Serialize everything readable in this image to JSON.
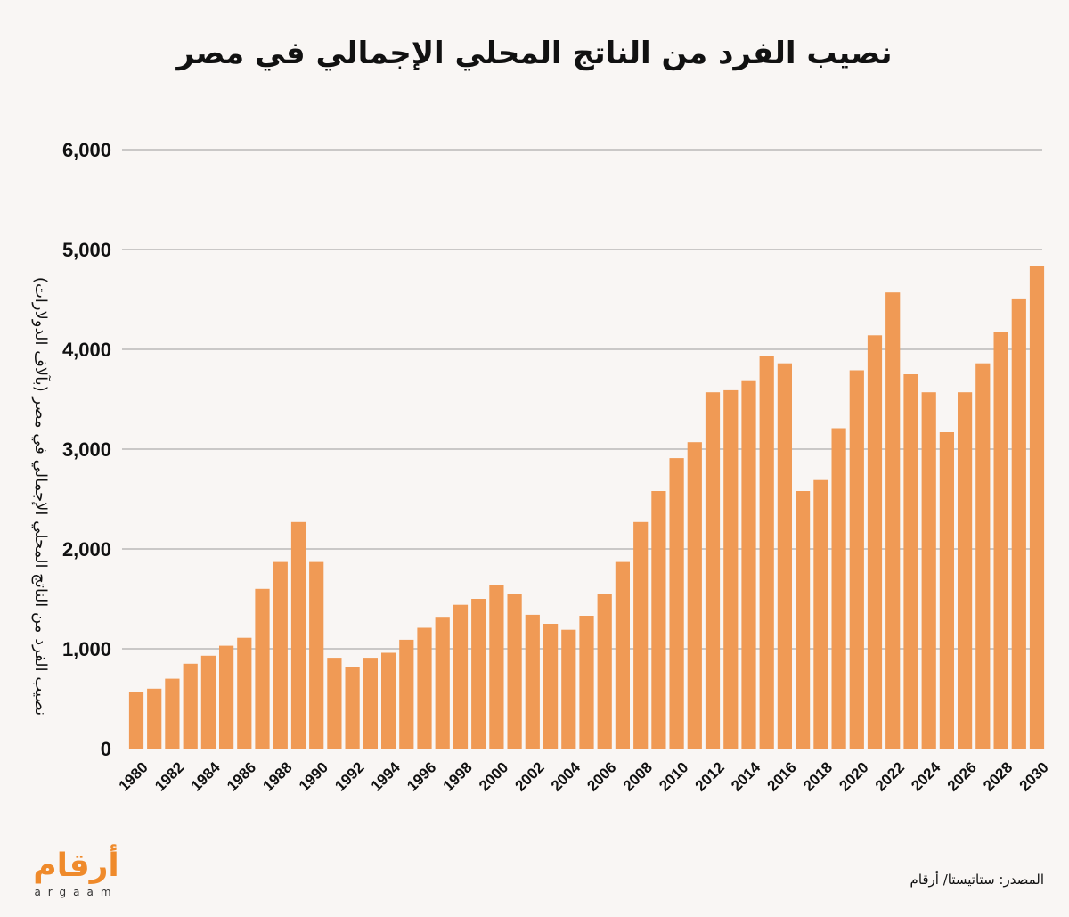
{
  "chart_data": {
    "type": "bar",
    "title": "نصيب الفرد من الناتج المحلي الإجمالي في مصر",
    "ylabel": "نصيب الفرد من الناتج المحلي الإجمالي في مصر (بآلاف الدولارات)",
    "xlabel": "",
    "ylim": [
      0,
      6000
    ],
    "yticks": [
      "0",
      "1,000",
      "2,000",
      "3,000",
      "4,000",
      "5,000",
      "6,000"
    ],
    "xtick_labels": [
      "1980",
      "1982",
      "1984",
      "1986",
      "1988",
      "1990",
      "1992",
      "1994",
      "1996",
      "1998",
      "2000",
      "2002",
      "2004",
      "2006",
      "2008",
      "2010",
      "2012",
      "2014",
      "2016",
      "2018",
      "2020",
      "2022",
      "2024",
      "2026",
      "2028",
      "2030"
    ],
    "categories": [
      1980,
      1981,
      1982,
      1983,
      1984,
      1985,
      1986,
      1987,
      1988,
      1989,
      1990,
      1991,
      1992,
      1993,
      1994,
      1995,
      1996,
      1997,
      1998,
      1999,
      2000,
      2001,
      2002,
      2003,
      2004,
      2005,
      2006,
      2007,
      2008,
      2009,
      2010,
      2011,
      2012,
      2013,
      2014,
      2015,
      2016,
      2017,
      2018,
      2019,
      2020,
      2021,
      2022,
      2023,
      2024,
      2025,
      2026,
      2027,
      2028,
      2029,
      2030
    ],
    "values": [
      570,
      600,
      700,
      850,
      930,
      1030,
      1110,
      1600,
      1870,
      2270,
      1870,
      910,
      820,
      910,
      960,
      1090,
      1210,
      1320,
      1440,
      1500,
      1640,
      1550,
      1340,
      1250,
      1190,
      1330,
      1550,
      1870,
      2270,
      2580,
      2910,
      3070,
      3570,
      3590,
      3690,
      3930,
      3860,
      2580,
      2690,
      3210,
      3790,
      4140,
      4570,
      3750,
      3570,
      3170,
      3570,
      3860,
      4170,
      4510,
      4830
    ],
    "grid": true,
    "bar_color": "#f09a55"
  },
  "source": "المصدر: ستاتيستا/ أرقام",
  "logo": {
    "arabic": "أرقام",
    "latin": "argaam"
  }
}
